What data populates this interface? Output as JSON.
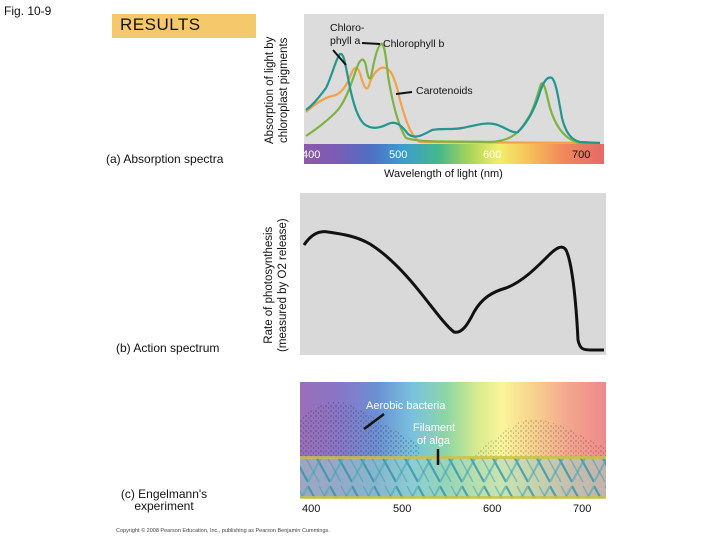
{
  "figure_label": "Fig. 10-9",
  "results_label": "RESULTS",
  "panel_a": {
    "label": "(a) Absorption spectra",
    "ylabel_line1": "Absorption of light by",
    "ylabel_line2": "chloroplast pigments",
    "curve_labels": {
      "chlorophyll_a_line1": "Chloro-",
      "chlorophyll_a_line2": "phyll a",
      "chlorophyll_b": "Chlorophyll b",
      "carotenoids": "Carotenoids"
    },
    "xticks": [
      "400",
      "500",
      "600",
      "700"
    ],
    "xlabel": "Wavelength of light (nm)",
    "colors": {
      "chlorophyll_a": "#22968f",
      "chlorophyll_b": "#7cb342",
      "carotenoids": "#f0a34a"
    }
  },
  "panel_b": {
    "label": "(b) Action spectrum",
    "ylabel_line1": "Rate of photosynthesis",
    "ylabel_line2": "(measured by O2 release)"
  },
  "panel_c": {
    "label_line1": "(c) Engelmann's",
    "label_line2": "experiment",
    "aerobic_label": "Aerobic bacteria",
    "filament_line1": "Filament",
    "filament_line2": "of alga",
    "xticks": [
      "400",
      "500",
      "600",
      "700"
    ]
  },
  "copyright": "Copyright © 2008 Pearson Education, Inc., publishing as Pearson Benjamin Cummings."
}
